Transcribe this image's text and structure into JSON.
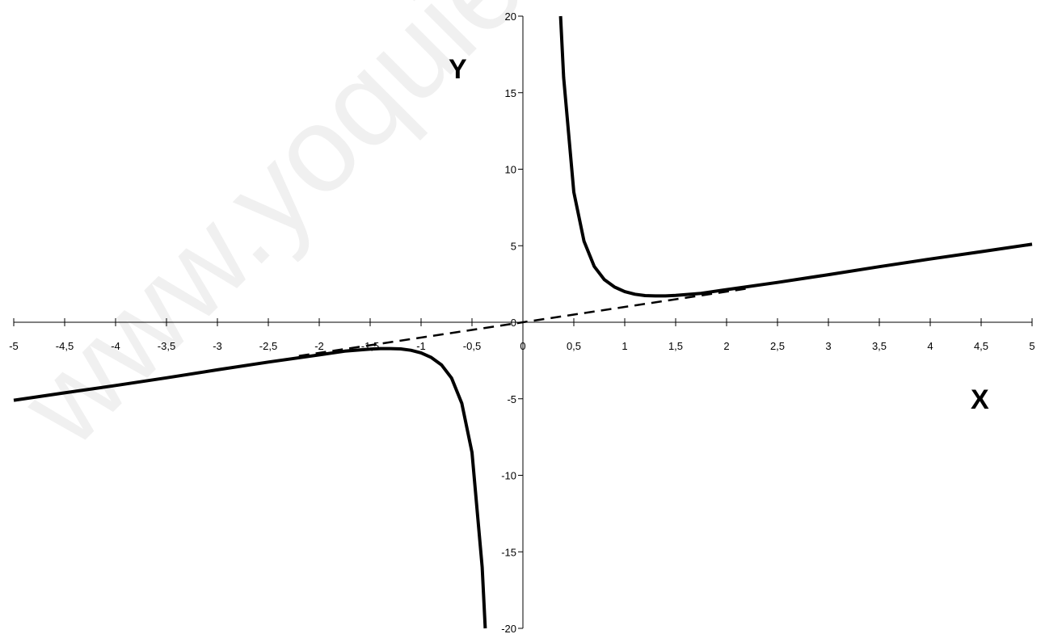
{
  "watermark": "www.yoquieroaprobar.es",
  "chart_data": {
    "type": "line",
    "title": "",
    "xlabel": "X",
    "ylabel": "Y",
    "xlim": [
      -5,
      5
    ],
    "ylim": [
      -20,
      20
    ],
    "x_ticks": [
      -5,
      -4.5,
      -4,
      -3.5,
      -3,
      -2.5,
      -2,
      -1.5,
      -1,
      -0.5,
      0,
      0.5,
      1,
      1.5,
      2,
      2.5,
      3,
      3.5,
      4,
      4.5,
      5
    ],
    "x_tick_labels": [
      "-5",
      "-4,5",
      "-4",
      "-3,5",
      "-3",
      "-2,5",
      "-2",
      "-1,5",
      "-1",
      "-0,5",
      "0",
      "0,5",
      "1",
      "1,5",
      "2",
      "2,5",
      "3",
      "3,5",
      "4",
      "4,5",
      "5"
    ],
    "y_ticks": [
      -20,
      -15,
      -10,
      -5,
      0,
      5,
      10,
      15,
      20
    ],
    "y_tick_labels": [
      "-20",
      "-15",
      "-10",
      "-5",
      "0",
      "5",
      "10",
      "15",
      "20"
    ],
    "grid": false,
    "legend": "none",
    "series": [
      {
        "style": "solid",
        "x": [
          0.37,
          0.4,
          0.5,
          0.6,
          0.7,
          0.8,
          0.9,
          1.0,
          1.1,
          1.2,
          1.3,
          1.4,
          1.5,
          1.75,
          2.0,
          2.5,
          3.0,
          3.5,
          4.0,
          4.5,
          5.0
        ],
        "y": [
          20,
          16,
          8.5,
          5.3,
          3.65,
          2.78,
          2.3,
          2.0,
          1.83,
          1.74,
          1.72,
          1.72,
          1.75,
          1.89,
          2.13,
          2.6,
          3.11,
          3.63,
          4.13,
          4.61,
          5.1
        ]
      },
      {
        "style": "solid",
        "x": [
          -5.0,
          -4.5,
          -4.0,
          -3.5,
          -3.0,
          -2.5,
          -2.0,
          -1.75,
          -1.5,
          -1.4,
          -1.3,
          -1.2,
          -1.1,
          -1.0,
          -0.9,
          -0.8,
          -0.7,
          -0.6,
          -0.5,
          -0.4,
          -0.37
        ],
        "y": [
          -5.1,
          -4.61,
          -4.13,
          -3.63,
          -3.11,
          -2.6,
          -2.13,
          -1.89,
          -1.75,
          -1.72,
          -1.72,
          -1.74,
          -1.83,
          -2.0,
          -2.3,
          -2.78,
          -3.65,
          -5.3,
          -8.5,
          -16,
          -20
        ]
      },
      {
        "style": "dashed",
        "x": [
          -2.2,
          2.2
        ],
        "y": [
          -2.2,
          2.2
        ]
      }
    ]
  }
}
